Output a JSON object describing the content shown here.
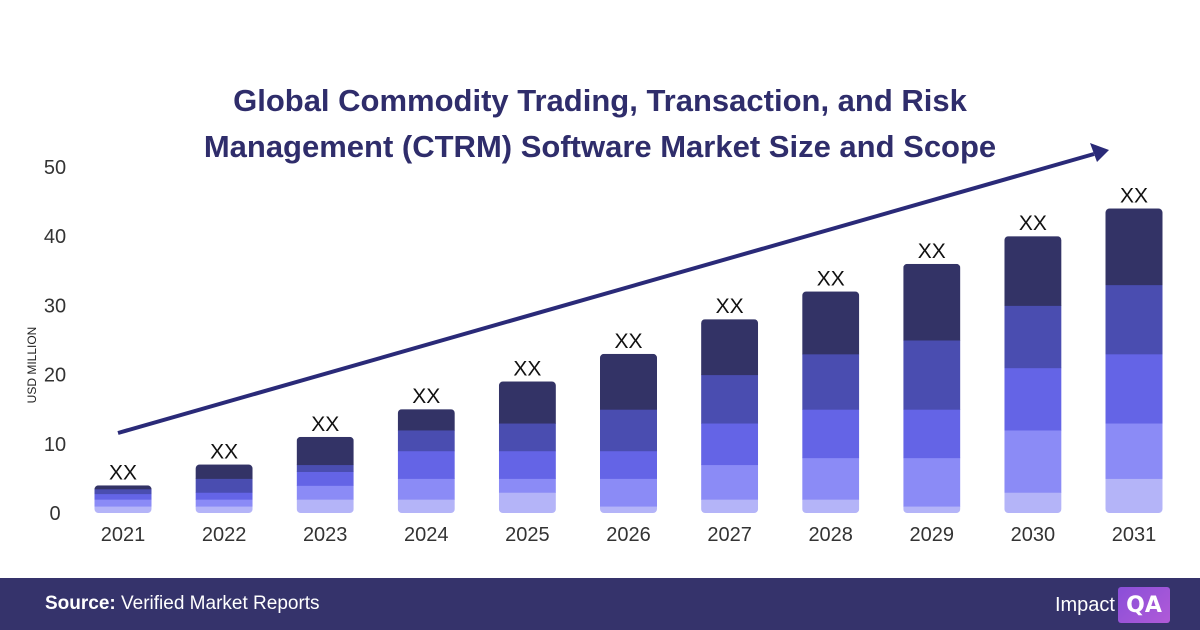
{
  "chart_data": {
    "type": "bar",
    "stacked": true,
    "title": "Global Commodity Trading, Transaction, and Risk Management (CTRM) Software Market Size and Scope",
    "title_lines": [
      "Global Commodity Trading, Transaction, and Risk",
      "Management (CTRM) Software Market Size and Scope"
    ],
    "xlabel": "",
    "ylabel": "USD MILLION",
    "ylim": [
      0,
      50
    ],
    "yticks": [
      0,
      10,
      20,
      30,
      40,
      50
    ],
    "grid": false,
    "categories": [
      "2021",
      "2022",
      "2023",
      "2024",
      "2025",
      "2026",
      "2027",
      "2028",
      "2029",
      "2030",
      "2031"
    ],
    "series": [
      {
        "values": [
          1,
          1,
          2,
          2,
          3,
          1,
          2,
          2,
          1,
          3,
          5
        ],
        "color": "#b4b4f8"
      },
      {
        "values": [
          1,
          1,
          2,
          3,
          2,
          4,
          5,
          6,
          7,
          9,
          8
        ],
        "color": "#8b8bf6"
      },
      {
        "values": [
          0.8,
          1,
          2,
          4,
          4,
          4,
          6,
          7,
          7,
          9,
          10
        ],
        "color": "#6464e6"
      },
      {
        "values": [
          0.7,
          2,
          1,
          3,
          4,
          6,
          7,
          8,
          10,
          9,
          10
        ],
        "color": "#4a4db0"
      },
      {
        "values": [
          0.5,
          2,
          4,
          3,
          6,
          8,
          8,
          9,
          11,
          10,
          11
        ],
        "color": "#333366"
      }
    ],
    "data_labels": [
      "XX",
      "XX",
      "XX",
      "XX",
      "XX",
      "XX",
      "XX",
      "XX",
      "XX",
      "XX",
      "XX"
    ],
    "trend_arrow": true,
    "trend_color": "#2a2a78"
  },
  "footer": {
    "source_label": "Source:",
    "source_value": "Verified Market Reports",
    "logo_text": "Impact",
    "logo_mark": "QA"
  }
}
